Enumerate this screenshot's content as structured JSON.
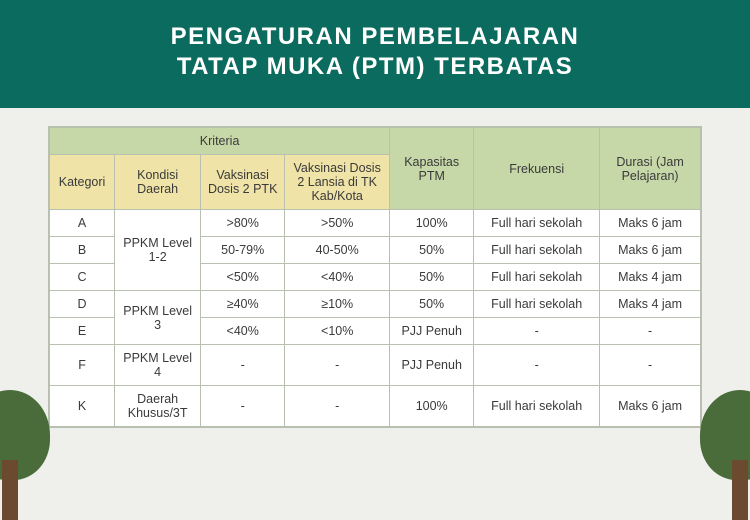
{
  "title_line1": "PENGATURAN PEMBELAJARAN",
  "title_line2": "TATAP MUKA (PTM) TERBATAS",
  "colors": {
    "header_bg": "#0a6b5e",
    "page_bg": "#eff0eb",
    "kriteria_bg": "#c7d8a8",
    "subhead_bg": "#efe3a8",
    "border": "#b8c0b0",
    "canopy": "#4a6b3a",
    "trunk": "#6b4a2f"
  },
  "headers": {
    "kriteria": "Kriteria",
    "kategori": "Kategori",
    "kondisi": "Kondisi Daerah",
    "vaks_ptk": "Vaksinasi Dosis 2 PTK",
    "vaks_lansia": "Vaksinasi Dosis 2 Lansia di TK Kab/Kota",
    "kapasitas": "Kapasitas PTM",
    "frekuensi": "Frekuensi",
    "durasi": "Durasi (Jam Pelajaran)"
  },
  "rows": [
    {
      "kat": "A",
      "kondisi": "PPKM Level 1-2",
      "vptk": ">80%",
      "vlansia": ">50%",
      "kap": "100%",
      "frek": "Full hari sekolah",
      "dur": "Maks 6 jam",
      "kondisi_rowspan": 3
    },
    {
      "kat": "B",
      "vptk": "50-79%",
      "vlansia": "40-50%",
      "kap": "50%",
      "frek": "Full hari sekolah",
      "dur": "Maks 6 jam"
    },
    {
      "kat": "C",
      "vptk": "<50%",
      "vlansia": "<40%",
      "kap": "50%",
      "frek": "Full hari sekolah",
      "dur": "Maks 4 jam"
    },
    {
      "kat": "D",
      "kondisi": "PPKM Level 3",
      "vptk": "≥40%",
      "vlansia": "≥10%",
      "kap": "50%",
      "frek": "Full hari sekolah",
      "dur": "Maks 4 jam",
      "kondisi_rowspan": 2
    },
    {
      "kat": "E",
      "vptk": "<40%",
      "vlansia": "<10%",
      "kap": "PJJ Penuh",
      "frek": "-",
      "dur": "-"
    },
    {
      "kat": "F",
      "kondisi": "PPKM Level 4",
      "vptk": "-",
      "vlansia": "-",
      "kap": "PJJ Penuh",
      "frek": "-",
      "dur": "-",
      "kondisi_rowspan": 1
    },
    {
      "kat": "K",
      "kondisi": "Daerah Khusus/3T",
      "vptk": "-",
      "vlansia": "-",
      "kap": "100%",
      "frek": "Full hari sekolah",
      "dur": "Maks 6 jam",
      "kondisi_rowspan": 1
    }
  ]
}
